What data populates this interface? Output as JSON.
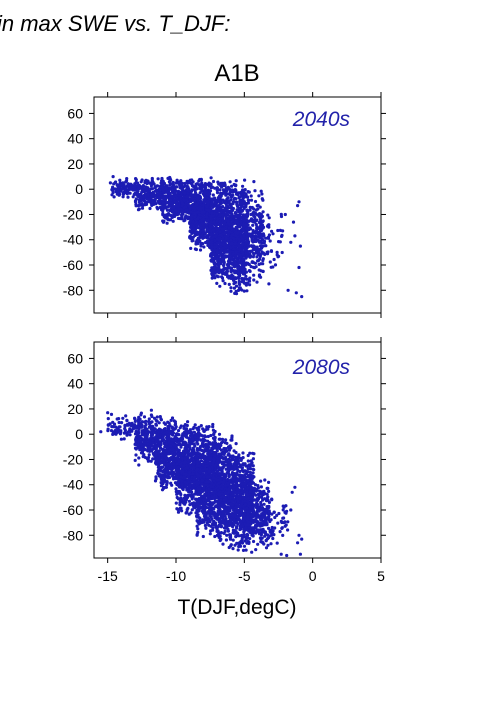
{
  "heading": "in max SWE vs. T_DJF:",
  "scenario": "A1B",
  "colors": {
    "points": "#1c1cb4",
    "period_label": "#2222aa"
  },
  "chart_data": [
    {
      "type": "scatter",
      "label": "2040s",
      "xlabel": "",
      "ylabel": "",
      "xlim": [
        -16,
        5
      ],
      "ylim": [
        -98,
        73
      ],
      "xticks": [
        -15,
        -10,
        -5,
        0,
        5
      ],
      "yticks": [
        60,
        40,
        20,
        0,
        -20,
        -40,
        -60,
        -80
      ],
      "show_x_tick_labels": false,
      "grid": false,
      "cloud": [
        {
          "x": [
            -14.7,
            -13.0
          ],
          "y": [
            -8,
            9
          ],
          "weight": 0.5
        },
        {
          "x": [
            -13.0,
            -11.0
          ],
          "y": [
            -18,
            10
          ],
          "weight": 1.3
        },
        {
          "x": [
            -11.0,
            -9.0
          ],
          "y": [
            -28,
            10
          ],
          "weight": 2.5
        },
        {
          "x": [
            -9.0,
            -7.5
          ],
          "y": [
            -50,
            10
          ],
          "weight": 3.5
        },
        {
          "x": [
            -7.5,
            -6.0
          ],
          "y": [
            -78,
            10
          ],
          "weight": 4.3
        },
        {
          "x": [
            -6.0,
            -4.8
          ],
          "y": [
            -86,
            8
          ],
          "weight": 3.6
        },
        {
          "x": [
            -4.8,
            -3.6
          ],
          "y": [
            -80,
            4
          ],
          "weight": 1.3
        },
        {
          "x": [
            -3.6,
            -2.2
          ],
          "y": [
            -65,
            -15
          ],
          "weight": 0.25
        }
      ],
      "points": [
        {
          "x": -14.6,
          "y": 10
        },
        {
          "x": -14.8,
          "y": 5
        },
        {
          "x": -1.0,
          "y": -10
        },
        {
          "x": -1.1,
          "y": -13
        },
        {
          "x": -0.9,
          "y": -45
        },
        {
          "x": -1.0,
          "y": -62
        },
        {
          "x": -0.8,
          "y": -85
        },
        {
          "x": -1.2,
          "y": -82
        },
        {
          "x": -1.8,
          "y": -80
        },
        {
          "x": -1.6,
          "y": -42
        },
        {
          "x": -1.3,
          "y": -37
        },
        {
          "x": -1.4,
          "y": -26
        },
        {
          "x": -2.2,
          "y": -33
        },
        {
          "x": -2.0,
          "y": -20
        },
        {
          "x": -4.3,
          "y": 6
        },
        {
          "x": -3.2,
          "y": -75
        },
        {
          "x": -2.6,
          "y": -50
        }
      ]
    },
    {
      "type": "scatter",
      "label": "2080s",
      "xlabel": "T(DJF,degC)",
      "ylabel": "",
      "xlim": [
        -16,
        5
      ],
      "ylim": [
        -98,
        73
      ],
      "xticks": [
        -15,
        -10,
        -5,
        0,
        5
      ],
      "yticks": [
        60,
        40,
        20,
        0,
        -20,
        -40,
        -60,
        -80
      ],
      "show_x_tick_labels": true,
      "grid": false,
      "cloud": [
        {
          "x": [
            -15.0,
            -13.0
          ],
          "y": [
            -5,
            17
          ],
          "weight": 0.4
        },
        {
          "x": [
            -13.0,
            -11.5
          ],
          "y": [
            -25,
            18
          ],
          "weight": 1.2
        },
        {
          "x": [
            -11.5,
            -10.0
          ],
          "y": [
            -45,
            17
          ],
          "weight": 2.6
        },
        {
          "x": [
            -10.0,
            -8.5
          ],
          "y": [
            -65,
            13
          ],
          "weight": 3.6
        },
        {
          "x": [
            -8.5,
            -7.0
          ],
          "y": [
            -82,
            10
          ],
          "weight": 4.3
        },
        {
          "x": [
            -7.0,
            -5.5
          ],
          "y": [
            -92,
            2
          ],
          "weight": 4.0
        },
        {
          "x": [
            -5.5,
            -4.3
          ],
          "y": [
            -95,
            -12
          ],
          "weight": 3.0
        },
        {
          "x": [
            -4.3,
            -3.2
          ],
          "y": [
            -92,
            -35
          ],
          "weight": 1.2
        },
        {
          "x": [
            -3.2,
            -1.8
          ],
          "y": [
            -90,
            -45
          ],
          "weight": 0.3
        }
      ],
      "points": [
        {
          "x": -15.5,
          "y": 2
        },
        {
          "x": -15.0,
          "y": 17
        },
        {
          "x": -14.5,
          "y": 8
        },
        {
          "x": -14.7,
          "y": 6
        },
        {
          "x": -1.3,
          "y": -42
        },
        {
          "x": -1.5,
          "y": -46
        },
        {
          "x": -1.0,
          "y": -80
        },
        {
          "x": -0.8,
          "y": -83
        },
        {
          "x": -0.9,
          "y": -95
        },
        {
          "x": -1.1,
          "y": -86
        },
        {
          "x": -1.9,
          "y": -96
        },
        {
          "x": -2.3,
          "y": -95
        },
        {
          "x": -1.6,
          "y": -60
        },
        {
          "x": -2.1,
          "y": -70
        },
        {
          "x": -11.8,
          "y": 19
        },
        {
          "x": -4.6,
          "y": -15
        }
      ]
    }
  ]
}
